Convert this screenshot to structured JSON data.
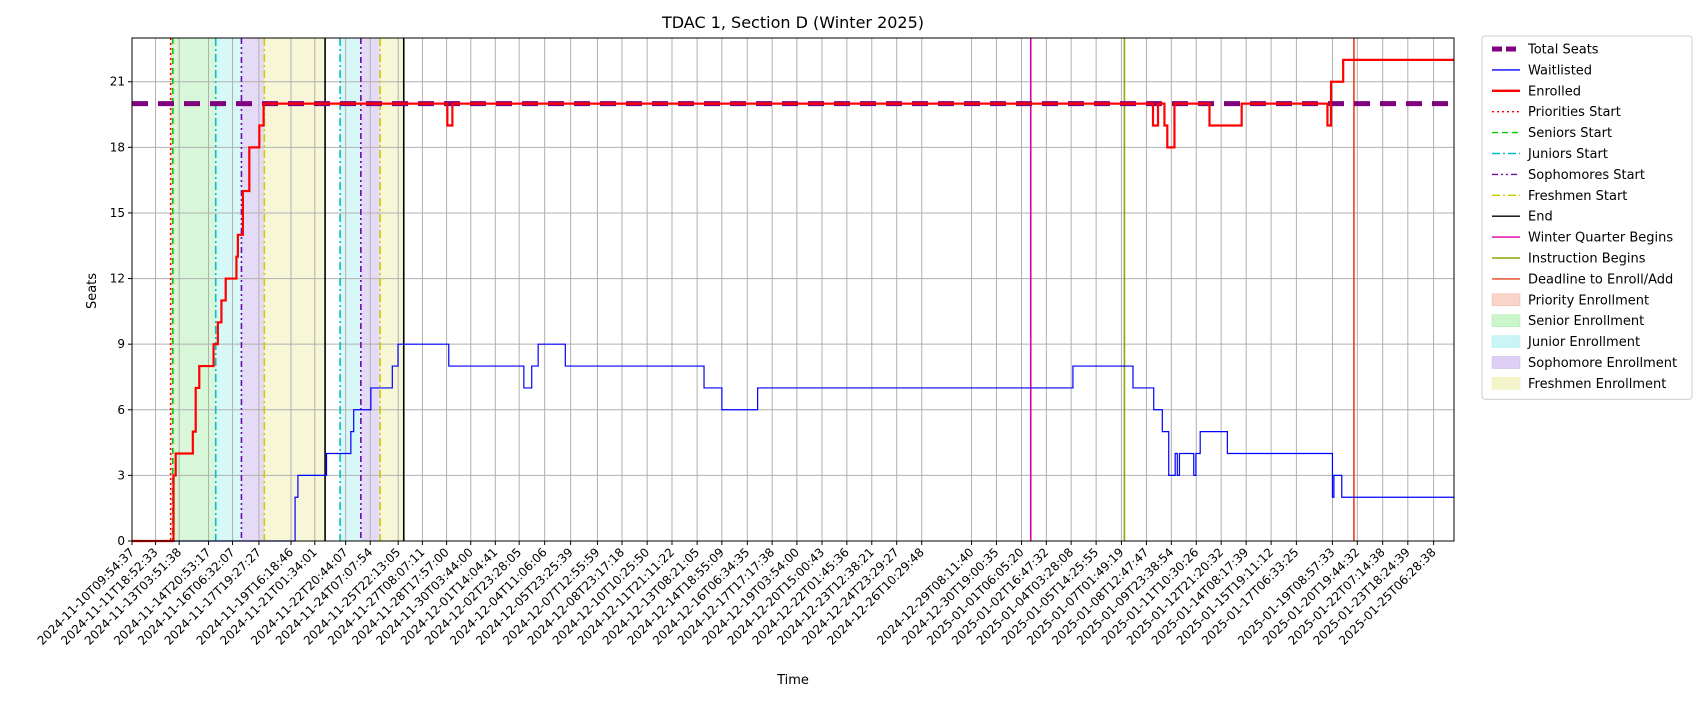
{
  "chart_data": {
    "type": "line",
    "title": "TDAC 1, Section D (Winter 2025)",
    "xlabel": "Time",
    "ylabel": "Seats",
    "ylim": [
      0,
      23
    ],
    "yticks": [
      0,
      3,
      6,
      9,
      12,
      15,
      18,
      21
    ],
    "xlim": [
      "2024-11-10T09:54:37",
      "2025-01-26T11:00:00"
    ],
    "grid": true,
    "legend_position": "outside-right",
    "xtick_labels": [
      "2024-11-10T09:54:37",
      "2024-11-11T18:52:33",
      "2024-11-13T03:51:38",
      "2024-11-14T20:53:17",
      "2024-11-16T06:32:07",
      "2024-11-17T19:27:27",
      "2024-11-19T16:18:46",
      "2024-11-21T01:34:01",
      "2024-11-22T20:44:07",
      "2024-11-24T07:07:54",
      "2024-11-25T22:13:05",
      "2024-11-27T08:07:11",
      "2024-11-28T17:57:00",
      "2024-11-30T03:44:00",
      "2024-12-01T14:04:41",
      "2024-12-02T23:28:05",
      "2024-12-04T11:06:06",
      "2024-12-05T23:25:39",
      "2024-12-07T12:55:59",
      "2024-12-08T23:17:18",
      "2024-12-10T10:25:50",
      "2024-12-11T21:11:22",
      "2024-12-13T08:21:05",
      "2024-12-14T18:55:09",
      "2024-12-16T06:34:35",
      "2024-12-17T17:17:38",
      "2024-12-19T03:54:00",
      "2024-12-20T15:00:43",
      "2024-12-22T01:45:36",
      "2024-12-23T12:38:21",
      "2024-12-24T23:29:27",
      "2024-12-26T10:29:48",
      "2024-12-29T08:11:40",
      "2024-12-30T19:00:35",
      "2025-01-01T06:05:20",
      "2025-01-02T16:47:32",
      "2025-01-04T03:28:08",
      "2025-01-05T14:25:55",
      "2025-01-07T01:49:19",
      "2025-01-08T12:47:47",
      "2025-01-09T23:38:54",
      "2025-01-11T10:30:26",
      "2025-01-12T21:20:32",
      "2025-01-14T08:17:39",
      "2025-01-15T19:11:12",
      "2025-01-17T06:33:25",
      "2025-01-19T08:57:33",
      "2025-01-20T19:44:32",
      "2025-01-22T07:14:38",
      "2025-01-23T18:24:39",
      "2025-01-25T06:28:38"
    ],
    "series": [
      {
        "name": "Total Seats",
        "color": "#800080",
        "style": "thick-dashed",
        "points": [
          [
            "2024-11-10T09:54:37",
            20
          ],
          [
            "2025-01-26T11:00:00",
            20
          ]
        ]
      },
      {
        "name": "Waitlisted",
        "color": "#0000ff",
        "style": "solid-thin-step",
        "points": [
          [
            "2024-11-10T09:54:37",
            0
          ],
          [
            "2024-11-19T20:00:00",
            0
          ],
          [
            "2024-11-19T22:00:00",
            2
          ],
          [
            "2024-11-20T02:00:00",
            3
          ],
          [
            "2024-11-21T18:00:00",
            4
          ],
          [
            "2024-11-23T04:00:00",
            5
          ],
          [
            "2024-11-23T08:00:00",
            6
          ],
          [
            "2024-11-24T08:00:00",
            7
          ],
          [
            "2024-11-25T14:00:00",
            8
          ],
          [
            "2024-11-25T22:00:00",
            9
          ],
          [
            "2024-11-28T21:00:00",
            8
          ],
          [
            "2024-12-03T06:00:00",
            7
          ],
          [
            "2024-12-03T17:00:00",
            8
          ],
          [
            "2024-12-04T02:00:00",
            9
          ],
          [
            "2024-12-05T16:00:00",
            8
          ],
          [
            "2024-12-13T18:00:00",
            7
          ],
          [
            "2024-12-14T19:00:00",
            6
          ],
          [
            "2024-12-16T21:00:00",
            7
          ],
          [
            "2025-01-04T06:00:00",
            8
          ],
          [
            "2025-01-07T18:00:00",
            7
          ],
          [
            "2025-01-08T23:00:00",
            6
          ],
          [
            "2025-01-09T11:00:00",
            5
          ],
          [
            "2025-01-09T20:00:00",
            3
          ],
          [
            "2025-01-10T05:00:00",
            4
          ],
          [
            "2025-01-10T08:00:00",
            3
          ],
          [
            "2025-01-10T11:00:00",
            4
          ],
          [
            "2025-01-11T07:00:00",
            3
          ],
          [
            "2025-01-11T10:00:00",
            4
          ],
          [
            "2025-01-11T16:00:00",
            5
          ],
          [
            "2025-01-13T06:00:00",
            4
          ],
          [
            "2025-01-19T09:00:00",
            2
          ],
          [
            "2025-01-19T11:00:00",
            3
          ],
          [
            "2025-01-19T22:00:00",
            2
          ],
          [
            "2025-01-26T11:00:00",
            2
          ]
        ]
      },
      {
        "name": "Enrolled",
        "color": "#ff0000",
        "style": "solid-thick-step",
        "points": [
          [
            "2024-11-10T09:54:37",
            0
          ],
          [
            "2024-11-12T18:00:00",
            0
          ],
          [
            "2024-11-12T20:00:00",
            3
          ],
          [
            "2024-11-12T23:00:00",
            4
          ],
          [
            "2024-11-13T23:00:00",
            5
          ],
          [
            "2024-11-14T03:00:00",
            7
          ],
          [
            "2024-11-14T08:00:00",
            8
          ],
          [
            "2024-11-15T04:00:00",
            9
          ],
          [
            "2024-11-15T10:00:00",
            10
          ],
          [
            "2024-11-15T15:00:00",
            11
          ],
          [
            "2024-11-15T21:00:00",
            12
          ],
          [
            "2024-11-16T12:00:00",
            13
          ],
          [
            "2024-11-16T14:00:00",
            14
          ],
          [
            "2024-11-16T21:00:00",
            16
          ],
          [
            "2024-11-17T06:00:00",
            18
          ],
          [
            "2024-11-17T20:00:00",
            19
          ],
          [
            "2024-11-18T02:00:00",
            20
          ],
          [
            "2024-11-28T18:00:00",
            20
          ],
          [
            "2024-11-28T19:00:00",
            19
          ],
          [
            "2024-11-29T02:00:00",
            20
          ],
          [
            "2025-01-08T20:00:00",
            20
          ],
          [
            "2025-01-08T22:00:00",
            19
          ],
          [
            "2025-01-09T05:00:00",
            20
          ],
          [
            "2025-01-09T14:00:00",
            19
          ],
          [
            "2025-01-09T18:00:00",
            18
          ],
          [
            "2025-01-10T04:00:00",
            20
          ],
          [
            "2025-01-12T05:00:00",
            19
          ],
          [
            "2025-01-14T02:00:00",
            20
          ],
          [
            "2025-01-19T02:00:00",
            19
          ],
          [
            "2025-01-19T07:00:00",
            21
          ],
          [
            "2025-01-20T00:00:00",
            22
          ],
          [
            "2025-01-26T11:00:00",
            22
          ]
        ]
      }
    ],
    "vertical_lines": [
      {
        "name": "Priorities Start",
        "color": "#ff0000",
        "style": "dotted",
        "x": "2024-11-12T16:00:00"
      },
      {
        "name": "Seniors Start",
        "color": "#00cc00",
        "style": "dashed",
        "x": "2024-11-12T19:00:00"
      },
      {
        "name": "Juniors Start",
        "color": "#00bfbf",
        "style": "dashdot",
        "x": "2024-11-15T07:00:00"
      },
      {
        "name": "Juniors Start",
        "color": "#00bfbf",
        "style": "dashdot",
        "x": "2024-11-22T13:00:00"
      },
      {
        "name": "Sophomores Start",
        "color": "#6a0dad",
        "style": "dashdotdot",
        "x": "2024-11-16T19:00:00"
      },
      {
        "name": "Sophomores Start",
        "color": "#6a0dad",
        "style": "dashdotdot",
        "x": "2024-11-23T18:00:00"
      },
      {
        "name": "Freshmen Start",
        "color": "#cccc00",
        "style": "dashdot",
        "x": "2024-11-18T03:00:00"
      },
      {
        "name": "Freshmen Start",
        "color": "#cccc00",
        "style": "dashdot",
        "x": "2024-11-24T21:00:00"
      },
      {
        "name": "End",
        "color": "#000000",
        "style": "solid",
        "x": "2024-11-21T16:00:00"
      },
      {
        "name": "End",
        "color": "#000000",
        "style": "solid",
        "x": "2024-11-26T06:00:00"
      },
      {
        "name": "Winter Quarter Begins",
        "color": "#dd00aa",
        "style": "solid",
        "x": "2025-01-01T19:00:00"
      },
      {
        "name": "Instruction Begins",
        "color": "#88aa00",
        "style": "solid",
        "x": "2025-01-07T06:00:00"
      },
      {
        "name": "Deadline to Enroll/Add",
        "color": "#e8401c",
        "style": "solid",
        "x": "2025-01-20T15:00:00"
      }
    ],
    "shaded_regions": [
      {
        "name": "Priority Enrollment",
        "color": "#f4b8a8",
        "from": "2024-11-12T16:00:00",
        "to": "2024-11-12T19:00:00"
      },
      {
        "name": "Senior Enrollment",
        "color": "#a8eea8",
        "from": "2024-11-12T19:00:00",
        "to": "2024-11-15T07:00:00"
      },
      {
        "name": "Junior Enrollment",
        "color": "#a8eeee",
        "from": "2024-11-15T07:00:00",
        "to": "2024-11-16T19:00:00"
      },
      {
        "name": "Sophomore Enrollment",
        "color": "#c8b0ee",
        "from": "2024-11-16T19:00:00",
        "to": "2024-11-18T03:00:00"
      },
      {
        "name": "Freshmen Enrollment",
        "color": "#eeeea8",
        "from": "2024-11-18T03:00:00",
        "to": "2024-11-21T16:00:00"
      },
      {
        "name": "Junior Enrollment",
        "color": "#a8eeee",
        "from": "2024-11-22T13:00:00",
        "to": "2024-11-23T18:00:00"
      },
      {
        "name": "Sophomore Enrollment",
        "color": "#c8b0ee",
        "from": "2024-11-23T18:00:00",
        "to": "2024-11-24T21:00:00"
      },
      {
        "name": "Freshmen Enrollment",
        "color": "#eeeea8",
        "from": "2024-11-24T21:00:00",
        "to": "2024-11-26T06:00:00"
      }
    ],
    "legend": [
      {
        "label": "Total Seats",
        "color": "#800080",
        "kind": "thick-dashed"
      },
      {
        "label": "Waitlisted",
        "color": "#0000ff",
        "kind": "solid-thin"
      },
      {
        "label": "Enrolled",
        "color": "#ff0000",
        "kind": "solid-thick"
      },
      {
        "label": "Priorities Start",
        "color": "#ff0000",
        "kind": "dotted"
      },
      {
        "label": "Seniors Start",
        "color": "#00cc00",
        "kind": "dashed"
      },
      {
        "label": "Juniors Start",
        "color": "#00bfbf",
        "kind": "dashdot"
      },
      {
        "label": "Sophomores Start",
        "color": "#6a0dad",
        "kind": "dashdotdot"
      },
      {
        "label": "Freshmen Start",
        "color": "#cccc00",
        "kind": "dashdot"
      },
      {
        "label": "End",
        "color": "#000000",
        "kind": "solid"
      },
      {
        "label": "Winter Quarter Begins",
        "color": "#dd00aa",
        "kind": "solid"
      },
      {
        "label": "Instruction Begins",
        "color": "#88aa00",
        "kind": "solid"
      },
      {
        "label": "Deadline to Enroll/Add",
        "color": "#e8401c",
        "kind": "solid"
      },
      {
        "label": "Priority Enrollment",
        "color": "#f4b8a8",
        "kind": "patch"
      },
      {
        "label": "Senior Enrollment",
        "color": "#a8eea8",
        "kind": "patch"
      },
      {
        "label": "Junior Enrollment",
        "color": "#a8eeee",
        "kind": "patch"
      },
      {
        "label": "Sophomore Enrollment",
        "color": "#c8b0ee",
        "kind": "patch"
      },
      {
        "label": "Freshmen Enrollment",
        "color": "#eeeea8",
        "kind": "patch"
      }
    ]
  }
}
